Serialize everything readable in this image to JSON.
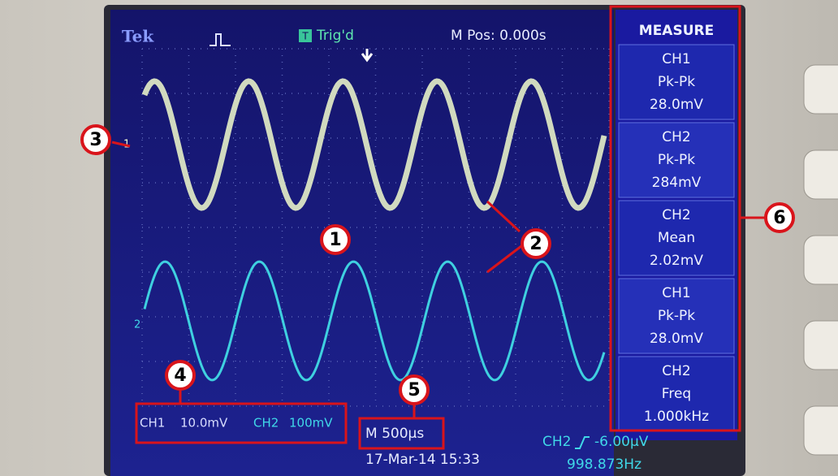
{
  "header": {
    "brand": "Tek",
    "trigger_badge": "T",
    "trigger": "Trig'd",
    "position": "M Pos: 0.000s"
  },
  "channel_markers": [
    "1",
    "2"
  ],
  "measure": {
    "title": "MEASURE",
    "items": [
      {
        "channel": "CH1",
        "type": "Pk-Pk",
        "value": "28.0mV"
      },
      {
        "channel": "CH2",
        "type": "Pk-Pk",
        "value": "284mV"
      },
      {
        "channel": "CH2",
        "type": "Mean",
        "value": "2.02mV"
      },
      {
        "channel": "CH1",
        "type": "Pk-Pk",
        "value": "28.0mV"
      },
      {
        "channel": "CH2",
        "type": "Freq",
        "value": "1.000kHz"
      }
    ]
  },
  "footer": {
    "ch1": "CH1",
    "ch1_scale": "10.0mV",
    "ch2": "CH2",
    "ch2_scale": "100mV",
    "timebase": "M 500µs",
    "date": "17-Mar-14 15:33",
    "trigger_source": "CH2",
    "trigger_level": "-6.00µV",
    "frequency": "998.873Hz"
  },
  "callouts": [
    "1",
    "2",
    "3",
    "4",
    "5",
    "6"
  ]
}
